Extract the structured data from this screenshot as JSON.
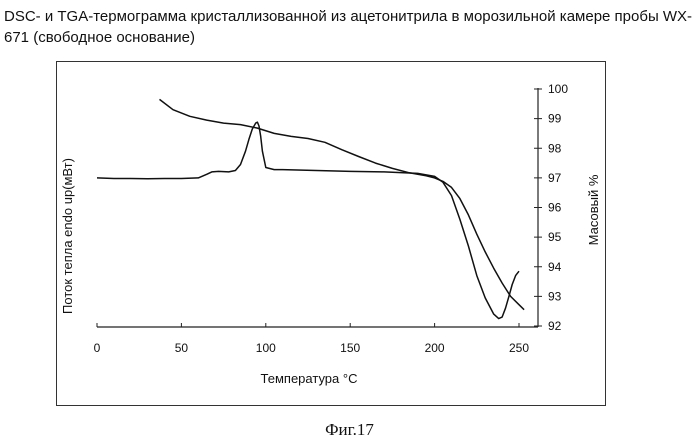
{
  "title": "DSC- и TGA-термограмма кристаллизованной из ацетонитрила в морозильной камере пробы WX-671 (свободное основание)",
  "caption": "Фиг.17",
  "chart_data": {
    "type": "line",
    "xlabel": "Температура °C",
    "ylabel_left": "Поток тепла  endo up(мВт)",
    "ylabel_right": "Масовый %",
    "xlim": [
      0,
      255
    ],
    "xticks": [
      0,
      50,
      100,
      150,
      200,
      250
    ],
    "y2lim": [
      92,
      100
    ],
    "y2ticks": [
      92,
      93,
      94,
      95,
      96,
      97,
      98,
      99,
      100
    ],
    "grid": false,
    "series": [
      {
        "role": "DSC",
        "axis": "left",
        "x": [
          0,
          10,
          20,
          30,
          40,
          50,
          60,
          65,
          68,
          72,
          78,
          82,
          85,
          88,
          90,
          92,
          94,
          95,
          96,
          97,
          98,
          100,
          105,
          110,
          130,
          150,
          170,
          190,
          200,
          205,
          210,
          215,
          220,
          225,
          230,
          235,
          238,
          240,
          242,
          244,
          246,
          248,
          250
        ],
        "y": [
          97.0,
          96.98,
          96.98,
          96.97,
          96.98,
          96.98,
          97.0,
          97.12,
          97.2,
          97.22,
          97.2,
          97.25,
          97.45,
          97.9,
          98.3,
          98.65,
          98.85,
          98.88,
          98.75,
          98.4,
          97.9,
          97.35,
          97.28,
          97.28,
          97.25,
          97.22,
          97.2,
          97.15,
          97.05,
          96.85,
          96.4,
          95.6,
          94.7,
          93.7,
          92.95,
          92.4,
          92.25,
          92.3,
          92.6,
          93.0,
          93.4,
          93.7,
          93.85
        ]
      },
      {
        "role": "TGA",
        "axis": "right",
        "x": [
          37,
          45,
          55,
          65,
          75,
          85,
          95,
          105,
          115,
          125,
          135,
          145,
          155,
          165,
          175,
          185,
          195,
          200,
          205,
          210,
          215,
          220,
          225,
          230,
          235,
          240,
          245,
          250,
          253
        ],
        "y": [
          99.65,
          99.3,
          99.08,
          98.95,
          98.85,
          98.8,
          98.68,
          98.5,
          98.4,
          98.33,
          98.2,
          97.95,
          97.72,
          97.5,
          97.32,
          97.17,
          97.07,
          97.0,
          96.88,
          96.68,
          96.3,
          95.75,
          95.1,
          94.5,
          93.95,
          93.45,
          93.0,
          92.72,
          92.55
        ]
      }
    ]
  }
}
